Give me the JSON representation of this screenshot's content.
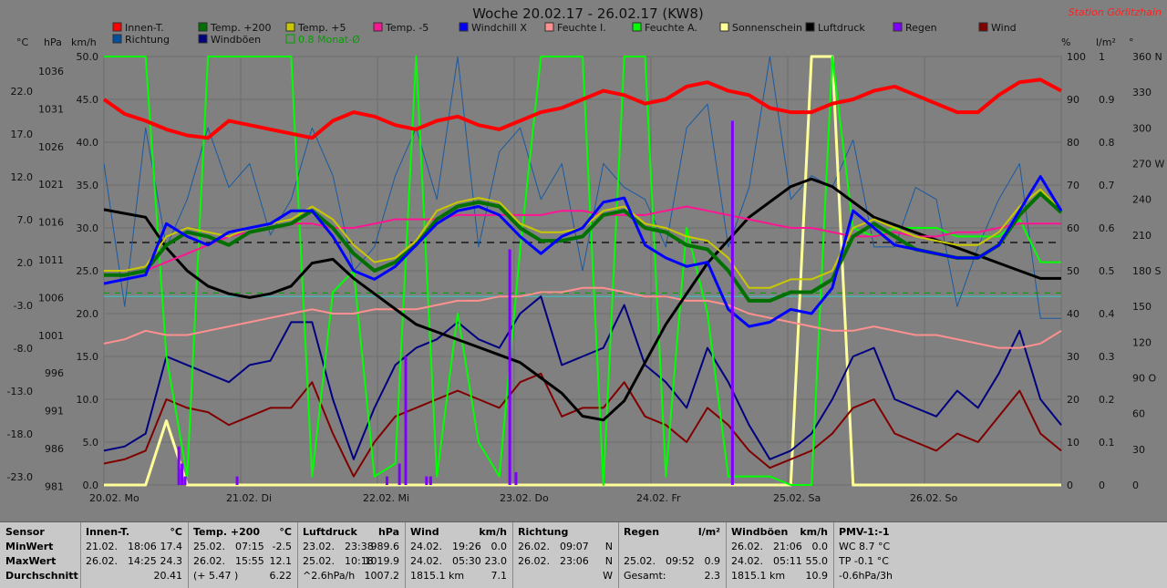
{
  "title": "Woche 20.02.17 - 26.02.17 (KW8)",
  "station": "Station Görlitzhain",
  "units": {
    "temp": "°C",
    "press": "hPa",
    "speed": "km/h",
    "pct": "%",
    "rain": "l/m²",
    "deg": "°"
  },
  "legend": [
    {
      "label": "Innen-T.",
      "color": "#ff0000"
    },
    {
      "label": "Temp. +200",
      "color": "#007000"
    },
    {
      "label": "Temp. +5",
      "color": "#c8c800"
    },
    {
      "label": "Temp. -5",
      "color": "#ff1493"
    },
    {
      "label": "Windchill X",
      "color": "#0000ff"
    },
    {
      "label": "Feuchte I.",
      "color": "#ff9090"
    },
    {
      "label": "Feuchte A.",
      "color": "#00ff00"
    },
    {
      "label": "Sonnenschein",
      "color": "#ffff99"
    },
    {
      "label": "Luftdruck",
      "color": "#000000"
    },
    {
      "label": "Regen",
      "color": "#8000ff"
    },
    {
      "label": "Wind",
      "color": "#800000"
    },
    {
      "label": "Richtung",
      "color": "#0050a0"
    },
    {
      "label": "Windböen",
      "color": "#000080"
    },
    {
      "label": "0.8 Monat-Ø",
      "color": "#00a000"
    }
  ],
  "chart_data": {
    "type": "line",
    "x_labels": [
      "20.02. Mo",
      "21.02. Di",
      "22.02. Mi",
      "23.02. Do",
      "24.02. Fr",
      "25.02. Sa",
      "26.02. So"
    ],
    "axes": {
      "temp": {
        "ticks": [
          "22.0",
          "17.0",
          "12.0",
          "7.0",
          "2.0",
          "-3.0",
          "-8.0",
          "-13.0",
          "-18.0",
          "-23.0"
        ],
        "range": [
          -23,
          27
        ]
      },
      "press": {
        "ticks": [
          "1036",
          "1031",
          "1026",
          "1021",
          "1016",
          "1011",
          "1006",
          "1001",
          "996",
          "991",
          "986",
          "981"
        ],
        "range": [
          981,
          1037
        ]
      },
      "speed": {
        "ticks": [
          "50.0",
          "45.0",
          "40.0",
          "35.0",
          "30.0",
          "25.0",
          "20.0",
          "15.0",
          "10.0",
          "5.0",
          "0.0"
        ],
        "range": [
          0,
          50
        ]
      },
      "pct": {
        "ticks": [
          "100",
          "90",
          "80",
          "70",
          "60",
          "50",
          "40",
          "30",
          "20",
          "10",
          "0"
        ],
        "range": [
          0,
          100
        ]
      },
      "rain": {
        "ticks": [
          "1",
          "0.9",
          "0.8",
          "0.7",
          "0.6",
          "0.5",
          "0.4",
          "0.3",
          "0.2",
          "0.1",
          "0"
        ],
        "range": [
          0,
          1
        ]
      },
      "deg": {
        "ticks": [
          "360 N",
          "330",
          "300",
          "270 W",
          "240",
          "210",
          "180 S",
          "150",
          "120",
          "90 O",
          "60",
          "30",
          "0"
        ],
        "range": [
          0,
          360
        ]
      }
    },
    "series": [
      {
        "name": "Innen-T.",
        "axis": "temp",
        "color": "#ff0000",
        "width": 4,
        "values": [
          22,
          20.3,
          19.5,
          18.5,
          17.8,
          17.5,
          19.5,
          19,
          18.5,
          18,
          17.5,
          19.5,
          20.5,
          20,
          19,
          18.5,
          19.5,
          20,
          19,
          18.5,
          19.5,
          20.5,
          21,
          22,
          23,
          22.5,
          21.5,
          22,
          23.5,
          24,
          23,
          22.5,
          21,
          20.5,
          20.5,
          21.5,
          22,
          23,
          23.5,
          22.5,
          21.5,
          20.5,
          20.5,
          22.5,
          24,
          24.3,
          23
        ]
      },
      {
        "name": "Temp. +200",
        "axis": "temp",
        "color": "#007000",
        "width": 4,
        "values": [
          1.5,
          1.5,
          2,
          5,
          6.5,
          6,
          5,
          6.5,
          7,
          7.5,
          9,
          7,
          4,
          2,
          3,
          5,
          8,
          9.5,
          10,
          9.5,
          7,
          5.5,
          5.5,
          6,
          8.5,
          9,
          7,
          6.5,
          5,
          4.5,
          2,
          -1.5,
          -1.5,
          -0.5,
          -0.5,
          1,
          6,
          7.5,
          6,
          4.5,
          4,
          3.5,
          3.5,
          5,
          8.5,
          11,
          8.8
        ]
      },
      {
        "name": "Temp. +5",
        "axis": "temp",
        "color": "#c8c800",
        "width": 2,
        "values": [
          2,
          2,
          2.5,
          6,
          7,
          6.5,
          6,
          7,
          7.5,
          8,
          9.5,
          8,
          5,
          3,
          3.5,
          5.5,
          9,
          10,
          10.5,
          10,
          7.5,
          6.5,
          6.5,
          7,
          9,
          9.5,
          7.5,
          7,
          6,
          5.5,
          3.5,
          0,
          0,
          1,
          1,
          2,
          7,
          8,
          7,
          6,
          5.5,
          5,
          5,
          6.5,
          9.5,
          11.5,
          9
        ]
      },
      {
        "name": "Temp. -5",
        "axis": "temp",
        "color": "#ff1493",
        "width": 2,
        "values": [
          1.5,
          1.5,
          2,
          3,
          4,
          5,
          6,
          6.5,
          7,
          7.5,
          7.5,
          7,
          7,
          7.5,
          8,
          8,
          8,
          8.5,
          8.5,
          8.5,
          8.5,
          8.5,
          9,
          9,
          8.5,
          8.5,
          8.5,
          9,
          9.5,
          9,
          8.5,
          8,
          7.5,
          7,
          7,
          6.5,
          6,
          6,
          6.5,
          6,
          6,
          6.5,
          6.5,
          7,
          7.5,
          7.5,
          7.5
        ]
      },
      {
        "name": "Windchill X",
        "axis": "temp",
        "color": "#0000ff",
        "width": 3,
        "values": [
          0.5,
          1,
          1.5,
          7.5,
          6,
          5,
          6.5,
          7,
          7.5,
          9,
          9,
          6,
          2,
          1,
          2.5,
          5,
          7.5,
          9,
          9.5,
          8.5,
          6,
          4,
          6,
          7,
          10,
          10.5,
          5,
          3.5,
          2.5,
          3,
          -2.5,
          -4.5,
          -4,
          -2.5,
          -3,
          0,
          9,
          7,
          5,
          4.5,
          4,
          3.5,
          3.5,
          5,
          9,
          13,
          9
        ]
      },
      {
        "name": "Feuchte I.",
        "axis": "pct",
        "color": "#ff9090",
        "width": 2,
        "values": [
          33,
          34,
          36,
          35,
          35,
          36,
          37,
          38,
          39,
          40,
          41,
          40,
          40,
          41,
          41,
          41,
          42,
          43,
          43,
          44,
          44,
          45,
          45,
          46,
          46,
          45,
          44,
          44,
          43,
          43,
          42,
          40,
          39,
          38,
          37,
          36,
          36,
          37,
          36,
          35,
          35,
          34,
          33,
          32,
          32,
          33,
          36
        ]
      },
      {
        "name": "Luftdruck",
        "axis": "press",
        "color": "#000000",
        "width": 3,
        "values": [
          1017,
          1016.5,
          1016,
          1012,
          1009,
          1007,
          1006,
          1005.5,
          1006,
          1007,
          1010,
          1010.5,
          1008,
          1006,
          1004,
          1002,
          1001,
          1000,
          999,
          998,
          997,
          995,
          993,
          990,
          989.5,
          992,
          997,
          1002,
          1006,
          1010,
          1013,
          1016,
          1018,
          1020,
          1021,
          1020,
          1018,
          1016,
          1015,
          1014,
          1013,
          1012,
          1011,
          1010,
          1009,
          1008,
          1008
        ]
      },
      {
        "name": "Feuchte A.",
        "axis": "pct",
        "color": "#00ff00",
        "width": 2,
        "values": [
          100,
          100,
          100,
          30,
          2,
          100,
          100,
          100,
          100,
          100,
          2,
          45,
          50,
          2,
          5,
          100,
          2,
          40,
          10,
          2,
          55,
          100,
          100,
          100,
          0,
          100,
          100,
          2,
          60,
          40,
          2,
          2,
          2,
          0,
          0,
          100,
          60,
          58,
          60,
          60,
          60,
          58,
          58,
          58,
          62,
          52,
          52
        ]
      },
      {
        "name": "Wind",
        "axis": "speed",
        "color": "#800000",
        "width": 2,
        "values": [
          2.5,
          3,
          4,
          10,
          9,
          8.5,
          7,
          8,
          9,
          9,
          12,
          6,
          1,
          5,
          8,
          9,
          10,
          11,
          10,
          9,
          12,
          13,
          8,
          9,
          9,
          12,
          8,
          7,
          5,
          9,
          7,
          4,
          2,
          3,
          4,
          6,
          9,
          10,
          6,
          5,
          4,
          6,
          5,
          8,
          11,
          6,
          4
        ]
      },
      {
        "name": "Windböen",
        "axis": "speed",
        "color": "#000080",
        "width": 2,
        "values": [
          4,
          4.5,
          6,
          15,
          14,
          13,
          12,
          14,
          14.5,
          19,
          19,
          10,
          3,
          9,
          14,
          16,
          17,
          19,
          17,
          16,
          20,
          22,
          14,
          15,
          16,
          21,
          14,
          12,
          9,
          16,
          12,
          7,
          3,
          4,
          6,
          10,
          15,
          16,
          10,
          9,
          8,
          11,
          9,
          13,
          18,
          10,
          7
        ]
      },
      {
        "name": "Sonnenschein",
        "axis": "pct",
        "color": "#ffff99",
        "width": 3,
        "values": [
          0,
          0,
          0,
          15,
          0,
          0,
          0,
          0,
          0,
          0,
          0,
          0,
          0,
          0,
          0,
          0,
          0,
          0,
          0,
          0,
          0,
          0,
          0,
          0,
          0,
          0,
          0,
          0,
          0,
          0,
          0,
          0,
          0,
          0,
          100,
          100,
          0,
          0,
          0,
          0,
          0,
          0,
          0,
          0,
          0,
          0,
          0
        ]
      },
      {
        "name": "Richtung",
        "axis": "deg",
        "color": "#1a5aa0",
        "width": 1,
        "values": [
          270,
          150,
          300,
          200,
          240,
          300,
          250,
          270,
          210,
          240,
          300,
          260,
          180,
          200,
          260,
          300,
          240,
          360,
          200,
          280,
          300,
          240,
          270,
          180,
          270,
          250,
          240,
          200,
          300,
          320,
          200,
          250,
          360,
          240,
          260,
          250,
          290,
          200,
          200,
          250,
          240,
          150,
          200,
          240,
          270,
          140,
          140
        ]
      }
    ],
    "rain_bars": [
      {
        "x": 3.6,
        "v": 0.09
      },
      {
        "x": 3.75,
        "v": 0.05
      },
      {
        "x": 3.9,
        "v": 0.02
      },
      {
        "x": 6.4,
        "v": 0.02
      },
      {
        "x": 13.6,
        "v": 0.02
      },
      {
        "x": 14.2,
        "v": 0.05
      },
      {
        "x": 14.5,
        "v": 0.3
      },
      {
        "x": 15.5,
        "v": 0.02
      },
      {
        "x": 15.7,
        "v": 0.02
      },
      {
        "x": 19.5,
        "v": 0.55
      },
      {
        "x": 19.8,
        "v": 0.03
      },
      {
        "x": 30.2,
        "v": 0.85
      }
    ],
    "avg_lines": [
      {
        "axis": "temp",
        "value": 5.3,
        "color": "#000000",
        "dash": "8,6"
      },
      {
        "axis": "temp",
        "value": -0.6,
        "color": "#00a000",
        "dash": "6,6"
      },
      {
        "axis": "temp",
        "value": -1.0,
        "color": "#40c0c0",
        "dash": "0"
      }
    ]
  },
  "stats": {
    "row_labels": [
      "Sensor",
      "MinWert",
      "MaxWert",
      "Durchschnitt"
    ],
    "cols": [
      {
        "name": "Innen-T.",
        "unit": "°C",
        "rows": [
          [
            "21.02.",
            "18:06",
            "17.4"
          ],
          [
            "26.02.",
            "14:25",
            "24.3"
          ],
          [
            "",
            "",
            "20.41"
          ]
        ]
      },
      {
        "name": "Temp. +200",
        "unit": "°C",
        "rows": [
          [
            "25.02.",
            "07:15",
            "-2.5"
          ],
          [
            "26.02.",
            "15:55",
            "12.1"
          ],
          [
            "(+ 5.47 )",
            "",
            "6.22"
          ]
        ]
      },
      {
        "name": "Luftdruck",
        "unit": "hPa",
        "rows": [
          [
            "23.02.",
            "23:38",
            "989.6"
          ],
          [
            "25.02.",
            "10:18",
            "1019.9"
          ],
          [
            "^2.6hPa/h",
            "",
            "1007.2"
          ]
        ]
      },
      {
        "name": "Wind",
        "unit": "km/h",
        "rows": [
          [
            "24.02.",
            "19:26",
            "0.0"
          ],
          [
            "24.02.",
            "05:30",
            "23.0"
          ],
          [
            "1815.1 km",
            "",
            "7.1"
          ]
        ]
      },
      {
        "name": "Richtung",
        "unit": "",
        "rows": [
          [
            "26.02.",
            "09:07",
            "N"
          ],
          [
            "26.02.",
            "23:06",
            "N"
          ],
          [
            "",
            "",
            "W"
          ]
        ]
      },
      {
        "name": "Regen",
        "unit": "l/m²",
        "rows": [
          [
            "",
            "",
            ""
          ],
          [
            "25.02.",
            "09:52",
            "0.9"
          ],
          [
            "Gesamt:",
            "",
            "2.3"
          ]
        ]
      },
      {
        "name": "Windböen",
        "unit": "km/h",
        "rows": [
          [
            "26.02.",
            "21:06",
            "0.0"
          ],
          [
            "24.02.",
            "05:11",
            "55.0"
          ],
          [
            "1815.1 km",
            "",
            "10.9"
          ]
        ]
      },
      {
        "name": "PMV-1:-1",
        "unit": "",
        "rows": [
          [
            "WC 8.7 °C",
            "",
            ""
          ],
          [
            "TP -0.1 °C",
            "",
            ""
          ],
          [
            "-0.6hPa/3h",
            "",
            ""
          ]
        ]
      }
    ]
  }
}
